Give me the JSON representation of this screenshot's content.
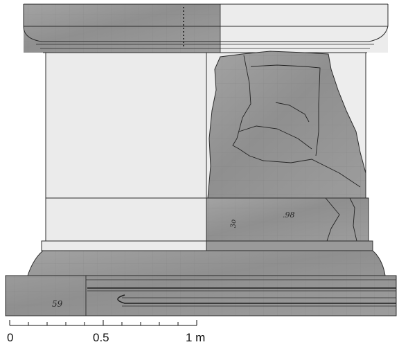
{
  "scale_bar": {
    "labels": [
      "0",
      "0.5",
      "1 m"
    ]
  },
  "stone_annotations": {
    "block_number": "59",
    "panel_number": ".98",
    "die_mark": "3o"
  },
  "colors": {
    "stone_gray": "#9a9a9a",
    "restored_fill": "#e9e9e9",
    "outline": "#2b2b2b",
    "background": "#ffffff"
  }
}
